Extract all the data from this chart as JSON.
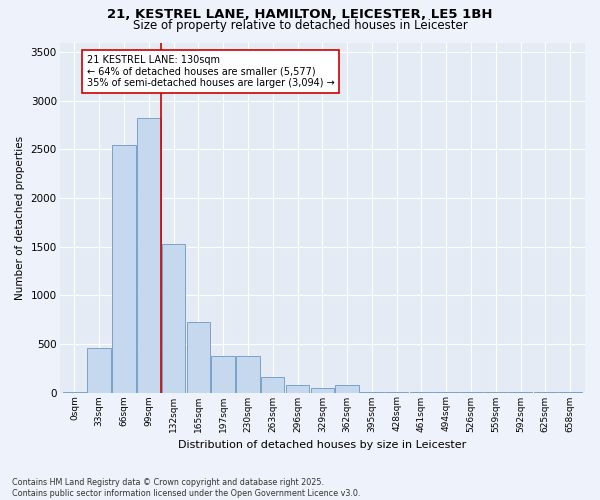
{
  "title_line1": "21, KESTREL LANE, HAMILTON, LEICESTER, LE5 1BH",
  "title_line2": "Size of property relative to detached houses in Leicester",
  "xlabel": "Distribution of detached houses by size in Leicester",
  "ylabel": "Number of detached properties",
  "bins": [
    "0sqm",
    "33sqm",
    "66sqm",
    "99sqm",
    "132sqm",
    "165sqm",
    "197sqm",
    "230sqm",
    "263sqm",
    "296sqm",
    "329sqm",
    "362sqm",
    "395sqm",
    "428sqm",
    "461sqm",
    "494sqm",
    "526sqm",
    "559sqm",
    "592sqm",
    "625sqm",
    "658sqm"
  ],
  "bar_values": [
    10,
    460,
    2550,
    2820,
    1530,
    730,
    380,
    380,
    160,
    80,
    50,
    80,
    10,
    5,
    5,
    5,
    5,
    5,
    5,
    5,
    5
  ],
  "bar_color": "#c5d8ee",
  "bar_edgecolor": "#7aa3c8",
  "vline_color": "#cc0000",
  "annotation_title": "21 KESTREL LANE: 130sqm",
  "annotation_line1": "← 64% of detached houses are smaller (5,577)",
  "annotation_line2": "35% of semi-detached houses are larger (3,094) →",
  "annotation_box_color": "#ffffff",
  "annotation_box_edgecolor": "#cc0000",
  "ylim": [
    0,
    3600
  ],
  "yticks": [
    0,
    500,
    1000,
    1500,
    2000,
    2500,
    3000,
    3500
  ],
  "footer_line1": "Contains HM Land Registry data © Crown copyright and database right 2025.",
  "footer_line2": "Contains public sector information licensed under the Open Government Licence v3.0.",
  "bg_color": "#eef2fa",
  "plot_bg_color": "#e4ebf5"
}
